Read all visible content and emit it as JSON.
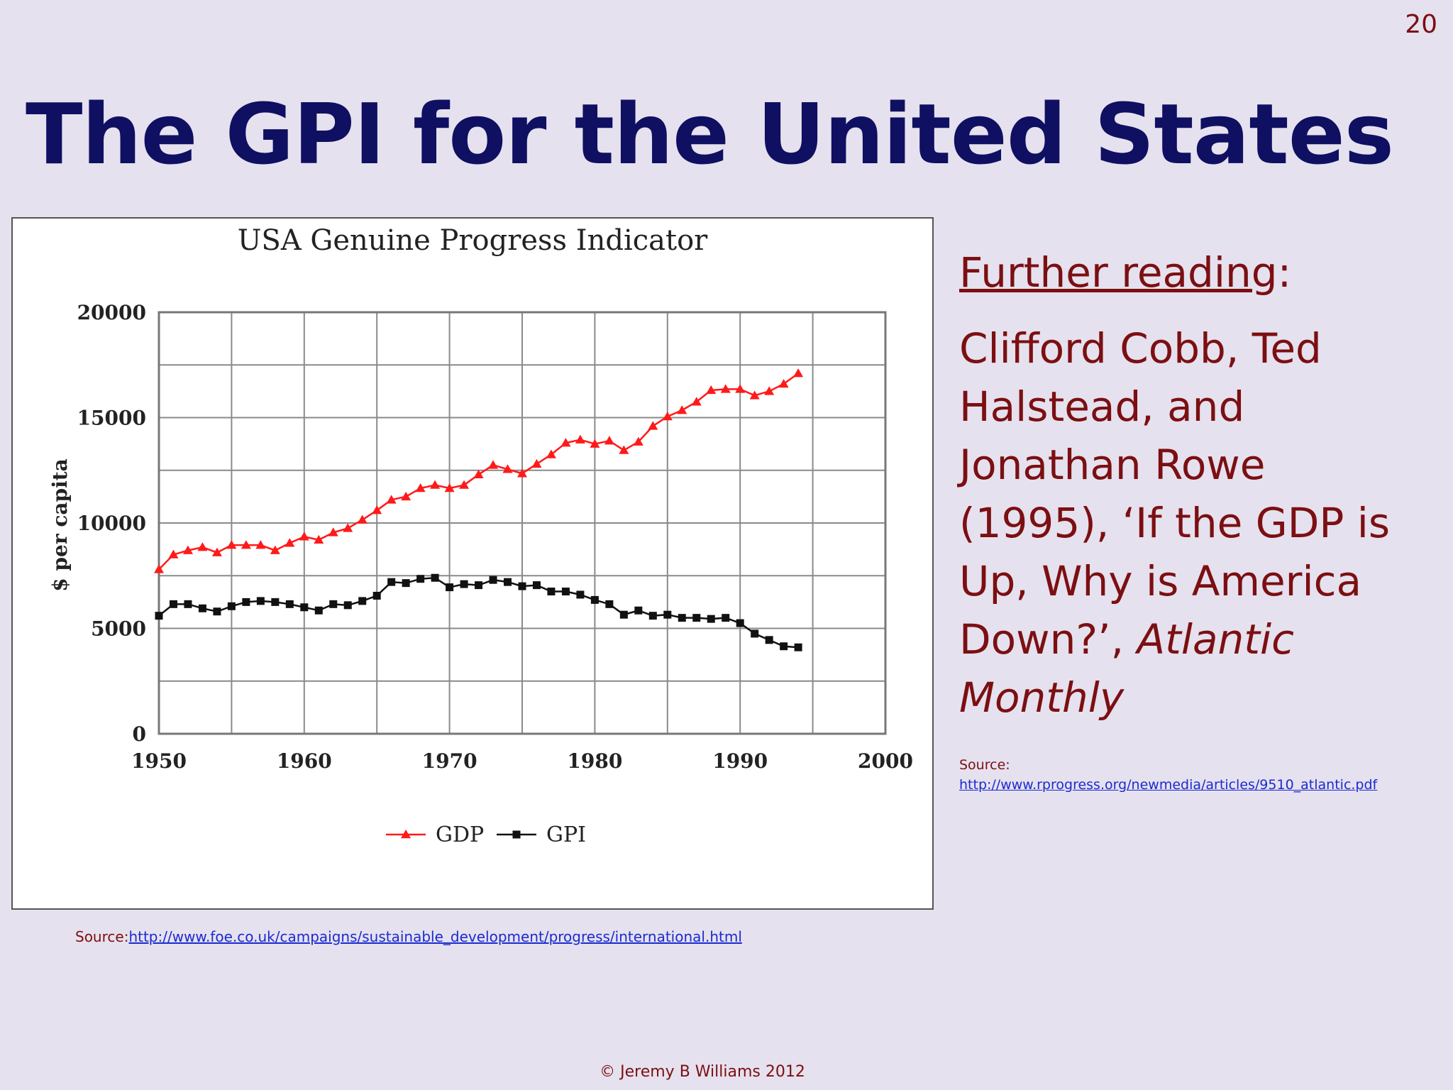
{
  "slide_number": "20",
  "title": "The GPI for the United States",
  "chart_data": {
    "type": "line",
    "title": "USA Genuine Progress Indicator",
    "ylabel": "$ per capita",
    "xlabel": "",
    "xlim": [
      1950,
      2000
    ],
    "ylim": [
      0,
      20000
    ],
    "x_ticks": [
      1950,
      1960,
      1970,
      1980,
      1990,
      2000
    ],
    "y_ticks": [
      0,
      5000,
      10000,
      15000,
      20000
    ],
    "grid": true,
    "legend_position": "bottom",
    "x": [
      1950,
      1951,
      1952,
      1953,
      1954,
      1955,
      1956,
      1957,
      1958,
      1959,
      1960,
      1961,
      1962,
      1963,
      1964,
      1965,
      1966,
      1967,
      1968,
      1969,
      1970,
      1971,
      1972,
      1973,
      1974,
      1975,
      1976,
      1977,
      1978,
      1979,
      1980,
      1981,
      1982,
      1983,
      1984,
      1985,
      1986,
      1987,
      1988,
      1989,
      1990,
      1991,
      1992,
      1993,
      1994
    ],
    "series": [
      {
        "name": "GDP",
        "color": "#ff1a1a",
        "marker": "triangle",
        "values": [
          7800,
          8500,
          8700,
          8850,
          8600,
          8950,
          8950,
          8950,
          8700,
          9050,
          9350,
          9200,
          9550,
          9750,
          10150,
          10600,
          11100,
          11250,
          11650,
          11800,
          11650,
          11800,
          12300,
          12750,
          12550,
          12350,
          12800,
          13250,
          13800,
          13950,
          13750,
          13900,
          13450,
          13850,
          14600,
          15050,
          15350,
          15750,
          16300,
          16350,
          16350,
          16050,
          16250,
          16600,
          17100
        ]
      },
      {
        "name": "GPI",
        "color": "#111111",
        "marker": "square",
        "values": [
          5600,
          6150,
          6150,
          5950,
          5800,
          6050,
          6250,
          6300,
          6250,
          6150,
          6000,
          5850,
          6150,
          6100,
          6300,
          6550,
          7200,
          7150,
          7350,
          7400,
          6950,
          7100,
          7050,
          7300,
          7200,
          7000,
          7050,
          6750,
          6750,
          6600,
          6350,
          6150,
          5650,
          5850,
          5600,
          5650,
          5500,
          5500,
          5450,
          5500,
          5250,
          4750,
          4450,
          4150,
          4100
        ]
      }
    ]
  },
  "chart_source": {
    "prefix": "Source:",
    "url": "http://www.foe.co.uk/campaigns/sustainable_development/progress/international.html"
  },
  "further_reading": {
    "heading": "Further reading",
    "heading_suffix": ":",
    "body_text": "Clifford Cobb, Ted Halstead, and Jonathan Rowe (1995), ‘If the GDP is Up, Why is America Down?’, ",
    "journal": "Atlantic Monthly",
    "source_label": "Source:",
    "source_url": "http://www.rprogress.org/newmedia/articles/9510_atlantic.pdf"
  },
  "footer": "© Jeremy B Williams 2012"
}
